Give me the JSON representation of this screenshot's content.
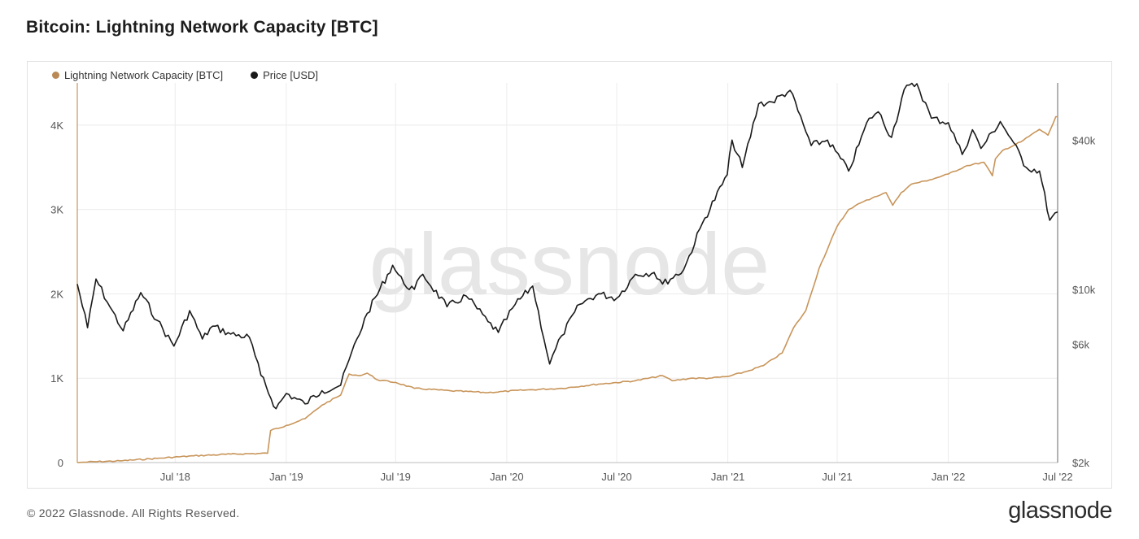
{
  "header": {
    "title": "Bitcoin: Lightning Network Capacity [BTC]"
  },
  "footer": {
    "copyright": "© 2022 Glassnode. All Rights Reserved.",
    "brand": "glassnode"
  },
  "watermark": "glassnode",
  "colors": {
    "capacity": "#c8955a",
    "price": "#1a1a1a",
    "grid": "#ececec",
    "legend_capacity": "#b98a55"
  },
  "chart_data": {
    "type": "line",
    "title": "Bitcoin: Lightning Network Capacity [BTC]",
    "legend": {
      "placement": "top-left",
      "entries": [
        "Lightning Network Capacity [BTC]",
        "Price [USD]"
      ]
    },
    "grid": true,
    "x_ticks": [
      "Jul '18",
      "Jan '19",
      "Jul '19",
      "Jan '20",
      "Jul '20",
      "Jan '21",
      "Jul '21",
      "Jan '22",
      "Jul '22"
    ],
    "x_tick_dates": [
      "2018-07-01",
      "2019-01-01",
      "2019-07-01",
      "2020-01-01",
      "2020-07-01",
      "2021-01-01",
      "2021-07-01",
      "2022-01-01",
      "2022-07-01"
    ],
    "x_range": [
      "2018-01-20",
      "2022-07-01"
    ],
    "y_left": {
      "label": "",
      "ticks": [
        "0",
        "1K",
        "2K",
        "3K",
        "4K"
      ],
      "tick_values": [
        0,
        1000,
        2000,
        3000,
        4000
      ],
      "range": [
        0,
        4500
      ]
    },
    "y_right": {
      "label": "",
      "scale": "log",
      "ticks": [
        "$2k",
        "$6k",
        "$10k",
        "$40k"
      ],
      "tick_values": [
        2000,
        6000,
        10000,
        40000
      ],
      "range": [
        2000,
        68000
      ]
    },
    "series": [
      {
        "name": "Lightning Network Capacity [BTC]",
        "axis": "left",
        "points": [
          [
            "2018-01-20",
            0
          ],
          [
            "2018-02-01",
            5
          ],
          [
            "2018-04-01",
            20
          ],
          [
            "2018-06-01",
            50
          ],
          [
            "2018-08-01",
            80
          ],
          [
            "2018-10-01",
            100
          ],
          [
            "2018-12-01",
            110
          ],
          [
            "2018-12-06",
            380
          ],
          [
            "2019-01-01",
            440
          ],
          [
            "2019-02-01",
            520
          ],
          [
            "2019-03-01",
            680
          ],
          [
            "2019-04-01",
            800
          ],
          [
            "2019-04-15",
            1050
          ],
          [
            "2019-05-01",
            1030
          ],
          [
            "2019-05-15",
            1060
          ],
          [
            "2019-06-01",
            980
          ],
          [
            "2019-07-01",
            950
          ],
          [
            "2019-08-01",
            880
          ],
          [
            "2019-10-01",
            850
          ],
          [
            "2019-12-01",
            830
          ],
          [
            "2020-02-01",
            860
          ],
          [
            "2020-04-01",
            880
          ],
          [
            "2020-06-01",
            930
          ],
          [
            "2020-08-01",
            970
          ],
          [
            "2020-09-15",
            1030
          ],
          [
            "2020-10-01",
            970
          ],
          [
            "2020-11-01",
            1000
          ],
          [
            "2020-12-01",
            1000
          ],
          [
            "2021-01-01",
            1020
          ],
          [
            "2021-02-01",
            1080
          ],
          [
            "2021-03-01",
            1150
          ],
          [
            "2021-04-01",
            1300
          ],
          [
            "2021-04-20",
            1600
          ],
          [
            "2021-05-10",
            1800
          ],
          [
            "2021-06-01",
            2300
          ],
          [
            "2021-07-01",
            2800
          ],
          [
            "2021-07-20",
            3000
          ],
          [
            "2021-08-01",
            3050
          ],
          [
            "2021-09-01",
            3150
          ],
          [
            "2021-09-20",
            3200
          ],
          [
            "2021-10-01",
            3050
          ],
          [
            "2021-10-15",
            3200
          ],
          [
            "2021-11-01",
            3300
          ],
          [
            "2021-12-01",
            3350
          ],
          [
            "2022-01-01",
            3420
          ],
          [
            "2022-02-01",
            3520
          ],
          [
            "2022-03-01",
            3560
          ],
          [
            "2022-03-15",
            3400
          ],
          [
            "2022-03-20",
            3600
          ],
          [
            "2022-04-01",
            3700
          ],
          [
            "2022-05-01",
            3800
          ],
          [
            "2022-06-01",
            3950
          ],
          [
            "2022-06-15",
            3880
          ],
          [
            "2022-06-28",
            4100
          ],
          [
            "2022-07-01",
            4100
          ]
        ]
      },
      {
        "name": "Price [USD]",
        "axis": "right",
        "points": [
          [
            "2018-01-20",
            10500
          ],
          [
            "2018-02-06",
            7000
          ],
          [
            "2018-02-20",
            11000
          ],
          [
            "2018-03-15",
            8500
          ],
          [
            "2018-04-06",
            6800
          ],
          [
            "2018-05-05",
            9700
          ],
          [
            "2018-06-01",
            7500
          ],
          [
            "2018-06-29",
            5900
          ],
          [
            "2018-07-25",
            8200
          ],
          [
            "2018-08-15",
            6300
          ],
          [
            "2018-09-01",
            7100
          ],
          [
            "2018-10-01",
            6600
          ],
          [
            "2018-11-01",
            6400
          ],
          [
            "2018-11-20",
            4500
          ],
          [
            "2018-12-15",
            3300
          ],
          [
            "2019-01-01",
            3800
          ],
          [
            "2019-02-01",
            3450
          ],
          [
            "2019-03-01",
            3900
          ],
          [
            "2019-04-01",
            4100
          ],
          [
            "2019-04-15",
            5200
          ],
          [
            "2019-05-15",
            8000
          ],
          [
            "2019-06-26",
            12500
          ],
          [
            "2019-07-15",
            10500
          ],
          [
            "2019-08-01",
            10000
          ],
          [
            "2019-08-15",
            11500
          ],
          [
            "2019-09-24",
            8500
          ],
          [
            "2019-10-26",
            9400
          ],
          [
            "2019-12-01",
            7400
          ],
          [
            "2019-12-18",
            6700
          ],
          [
            "2020-01-15",
            8700
          ],
          [
            "2020-02-13",
            10300
          ],
          [
            "2020-03-12",
            5000
          ],
          [
            "2020-04-01",
            6500
          ],
          [
            "2020-05-01",
            8700
          ],
          [
            "2020-06-01",
            9600
          ],
          [
            "2020-07-01",
            9200
          ],
          [
            "2020-08-01",
            11500
          ],
          [
            "2020-09-01",
            11700
          ],
          [
            "2020-09-15",
            10500
          ],
          [
            "2020-10-20",
            12000
          ],
          [
            "2020-11-20",
            18500
          ],
          [
            "2020-12-31",
            29000
          ],
          [
            "2021-01-08",
            40000
          ],
          [
            "2021-01-25",
            31000
          ],
          [
            "2021-02-21",
            56000
          ],
          [
            "2021-03-15",
            57000
          ],
          [
            "2021-04-14",
            63500
          ],
          [
            "2021-05-19",
            38000
          ],
          [
            "2021-06-15",
            40000
          ],
          [
            "2021-07-20",
            30000
          ],
          [
            "2021-08-23",
            49000
          ],
          [
            "2021-09-07",
            52000
          ],
          [
            "2021-09-29",
            41000
          ],
          [
            "2021-10-20",
            64000
          ],
          [
            "2021-11-10",
            67500
          ],
          [
            "2021-12-04",
            49000
          ],
          [
            "2022-01-01",
            47000
          ],
          [
            "2022-01-24",
            35000
          ],
          [
            "2022-02-10",
            44000
          ],
          [
            "2022-02-24",
            37000
          ],
          [
            "2022-03-28",
            47500
          ],
          [
            "2022-04-15",
            40500
          ],
          [
            "2022-05-10",
            31000
          ],
          [
            "2022-06-01",
            30000
          ],
          [
            "2022-06-18",
            19000
          ],
          [
            "2022-07-01",
            20500
          ]
        ]
      }
    ]
  }
}
